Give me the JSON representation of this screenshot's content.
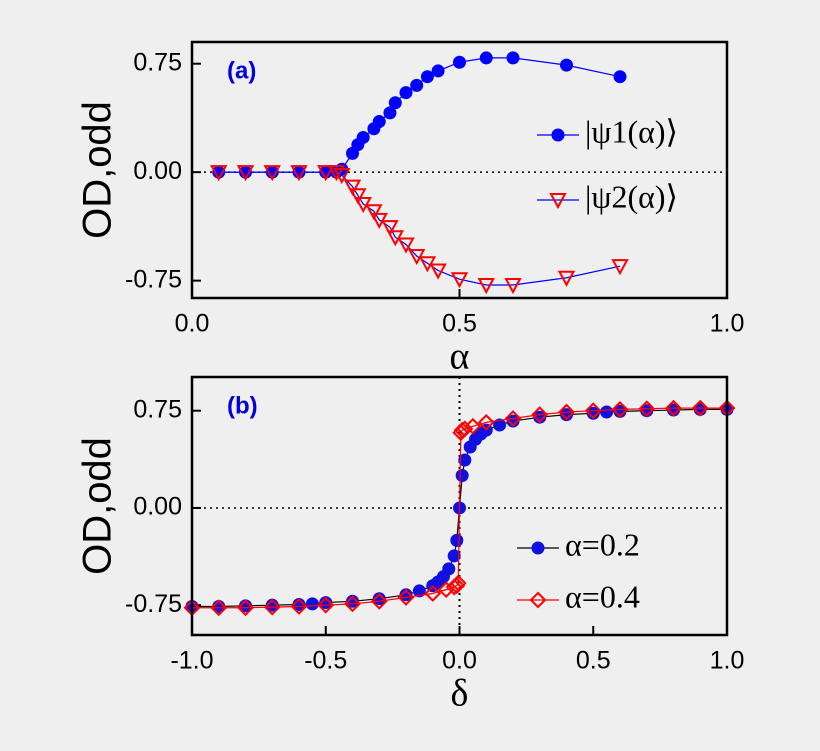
{
  "chart_data": [
    {
      "type": "line",
      "annotation": "(a)",
      "xlabel": "α",
      "ylabel": "OD,odd",
      "xlim": [
        0,
        1
      ],
      "ylim": [
        -0.87,
        0.9
      ],
      "xticks": [
        {
          "value": 0,
          "label": "0.0"
        },
        {
          "value": 0.5,
          "label": "0.5"
        },
        {
          "value": 1,
          "label": "1.0"
        }
      ],
      "yticks": [
        -0.75,
        {
          "value": 0,
          "label": "0.00"
        },
        0.75
      ],
      "hline": 0,
      "legend": "right",
      "series": [
        {
          "name": "|ψ1(α)⟩",
          "color": "#0000ff",
          "line_color": "#0000ff",
          "marker": "circle",
          "x": [
            0.05,
            0.1,
            0.15,
            0.2,
            0.25,
            0.27,
            0.28,
            0.3,
            0.31,
            0.32,
            0.34,
            0.35,
            0.37,
            0.38,
            0.4,
            0.42,
            0.44,
            0.46,
            0.5,
            0.55,
            0.6,
            0.7,
            0.8
          ],
          "values": [
            0,
            0,
            0,
            0,
            0,
            0,
            0.02,
            0.13,
            0.19,
            0.24,
            0.3,
            0.35,
            0.41,
            0.48,
            0.55,
            0.6,
            0.66,
            0.7,
            0.76,
            0.79,
            0.79,
            0.74,
            0.66
          ]
        },
        {
          "name": "|ψ2(α)⟩",
          "color": "#ff0000",
          "line_color": "#0000ff",
          "marker": "triangle",
          "x": [
            0.05,
            0.1,
            0.15,
            0.2,
            0.25,
            0.27,
            0.28,
            0.3,
            0.31,
            0.32,
            0.34,
            0.35,
            0.37,
            0.38,
            0.4,
            0.42,
            0.44,
            0.46,
            0.5,
            0.55,
            0.6,
            0.7,
            0.8
          ],
          "values": [
            0,
            0,
            0,
            0,
            0,
            0,
            -0.02,
            -0.1,
            -0.16,
            -0.22,
            -0.27,
            -0.33,
            -0.38,
            -0.45,
            -0.5,
            -0.58,
            -0.63,
            -0.68,
            -0.74,
            -0.78,
            -0.78,
            -0.73,
            -0.65
          ]
        }
      ]
    },
    {
      "type": "line",
      "annotation": "(b)",
      "xlabel": "δ",
      "ylabel": "OD,odd",
      "xlim": [
        -1,
        1
      ],
      "ylim": [
        -0.98,
        1.01
      ],
      "xticks": [
        {
          "value": -1,
          "label": "-1.0"
        },
        -0.5,
        {
          "value": 0,
          "label": "0.0"
        },
        0.5,
        {
          "value": 1,
          "label": "1.0"
        }
      ],
      "yticks": [
        -0.75,
        {
          "value": 0,
          "label": "0.00"
        },
        0.75
      ],
      "hline": 0,
      "vline": 0,
      "legend": "lower right",
      "series": [
        {
          "name": "α=0.2",
          "color": "#1010e0",
          "line_color": "#000000",
          "marker": "circle",
          "x": [
            -1,
            -0.9,
            -0.8,
            -0.7,
            -0.6,
            -0.55,
            -0.5,
            -0.4,
            -0.3,
            -0.2,
            -0.15,
            -0.1,
            -0.08,
            -0.06,
            -0.04,
            -0.02,
            -0.01,
            0,
            0.01,
            0.02,
            0.04,
            0.06,
            0.08,
            0.1,
            0.15,
            0.2,
            0.3,
            0.4,
            0.5,
            0.55,
            0.6,
            0.7,
            0.8,
            0.9,
            1
          ],
          "values": [
            -0.76,
            -0.76,
            -0.755,
            -0.75,
            -0.745,
            -0.74,
            -0.73,
            -0.72,
            -0.7,
            -0.67,
            -0.64,
            -0.6,
            -0.57,
            -0.53,
            -0.47,
            -0.37,
            -0.25,
            0,
            0.25,
            0.37,
            0.47,
            0.53,
            0.57,
            0.6,
            0.64,
            0.67,
            0.7,
            0.72,
            0.73,
            0.74,
            0.745,
            0.75,
            0.755,
            0.76,
            0.76
          ]
        },
        {
          "name": "α=0.4",
          "color": "#ff0000",
          "line_color": "#ff0000",
          "marker": "diamond",
          "x": [
            -1,
            -0.9,
            -0.8,
            -0.7,
            -0.6,
            -0.5,
            -0.4,
            -0.3,
            -0.2,
            -0.1,
            -0.05,
            -0.02,
            -0.01,
            -0.005,
            0.005,
            0.01,
            0.02,
            0.05,
            0.1,
            0.2,
            0.3,
            0.4,
            0.5,
            0.6,
            0.7,
            0.8,
            0.9,
            1
          ],
          "values": [
            -0.77,
            -0.77,
            -0.77,
            -0.765,
            -0.76,
            -0.75,
            -0.74,
            -0.72,
            -0.69,
            -0.66,
            -0.63,
            -0.61,
            -0.6,
            -0.58,
            0.58,
            0.6,
            0.61,
            0.63,
            0.66,
            0.69,
            0.72,
            0.74,
            0.75,
            0.76,
            0.765,
            0.77,
            0.77,
            0.77
          ]
        }
      ]
    }
  ]
}
